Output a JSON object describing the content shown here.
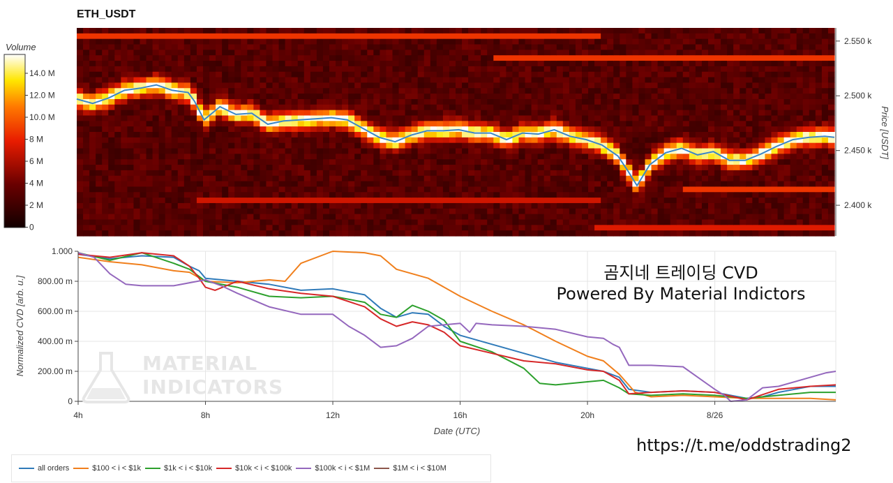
{
  "title": "ETH_USDT",
  "heatmap": {
    "colorbar_title": "Volume",
    "colorbar_ticks": [
      "14.0 M",
      "12.0 M",
      "10.0 M",
      "8 M",
      "6 M",
      "4 M",
      "2 M",
      "0"
    ],
    "price_axis_label": "Price [USDT]",
    "price_ticks": [
      "2.550 k",
      "2.500 k",
      "2.450 k",
      "2.400 k"
    ],
    "price_tick_values": [
      2550,
      2500,
      2450,
      2400
    ],
    "price_range": [
      2372,
      2562
    ],
    "colors": {
      "low": "#120000",
      "mid": "#e81c00",
      "high": "#ffffff"
    }
  },
  "chart_data": {
    "type": "line",
    "xlabel": "Date (UTC)",
    "ylabel": "Normalized CVD [arb. u.]",
    "x_ticks": [
      "4h",
      "8h",
      "12h",
      "16h",
      "20h",
      "8/26"
    ],
    "x_tick_values": [
      4,
      8,
      12,
      16,
      20,
      24
    ],
    "xlim": [
      4,
      27.8
    ],
    "y_ticks": [
      "1.000",
      "800.00 m",
      "600.00 m",
      "400.00 m",
      "200.00 m",
      "0"
    ],
    "y_tick_values": [
      1.0,
      0.8,
      0.6,
      0.4,
      0.2,
      0
    ],
    "ylim": [
      0,
      1.0
    ],
    "grid": true,
    "price_line": {
      "x": [
        4.0,
        4.5,
        5.0,
        5.5,
        6.0,
        6.5,
        7.0,
        7.5,
        7.7,
        8.0,
        8.5,
        9.0,
        9.5,
        10.0,
        10.5,
        11.0,
        11.5,
        12.0,
        12.5,
        13.0,
        13.5,
        14.0,
        14.5,
        15.0,
        15.5,
        16.0,
        16.5,
        17.0,
        17.5,
        18.0,
        18.5,
        19.0,
        19.5,
        20.0,
        20.5,
        21.0,
        21.3,
        21.6,
        22.0,
        22.5,
        23.0,
        23.5,
        24.0,
        24.5,
        25.0,
        25.5,
        26.0,
        26.5,
        27.0,
        27.5,
        27.8
      ],
      "y": [
        2497,
        2493,
        2498,
        2505,
        2507,
        2510,
        2505,
        2503,
        2495,
        2478,
        2490,
        2483,
        2484,
        2474,
        2477,
        2478,
        2479,
        2480,
        2478,
        2470,
        2462,
        2458,
        2464,
        2468,
        2468,
        2469,
        2466,
        2466,
        2460,
        2466,
        2465,
        2469,
        2463,
        2460,
        2455,
        2445,
        2432,
        2418,
        2437,
        2448,
        2452,
        2446,
        2449,
        2441,
        2441,
        2447,
        2454,
        2460,
        2462,
        2463,
        2462
      ]
    },
    "series": [
      {
        "name": "all orders",
        "color": "#2f7ab9",
        "x": [
          4,
          5,
          6,
          7,
          7.5,
          7.8,
          8.0,
          9,
          10,
          11,
          12,
          13,
          13.5,
          14,
          14.5,
          15,
          15.5,
          16,
          17,
          18,
          19,
          20,
          20.5,
          21,
          21.3,
          22,
          23,
          24,
          25,
          25.5,
          26,
          26.5,
          27,
          27.8
        ],
        "y": [
          0.98,
          0.95,
          0.97,
          0.96,
          0.9,
          0.87,
          0.82,
          0.8,
          0.78,
          0.74,
          0.75,
          0.71,
          0.62,
          0.56,
          0.59,
          0.58,
          0.5,
          0.44,
          0.38,
          0.32,
          0.26,
          0.22,
          0.2,
          0.16,
          0.08,
          0.06,
          0.07,
          0.06,
          0.02,
          0.03,
          0.06,
          0.08,
          0.1,
          0.1
        ]
      },
      {
        "name": "$100 < i < $1k",
        "color": "#f07f1c",
        "x": [
          4,
          5,
          6,
          7,
          7.5,
          8.0,
          9,
          10,
          10.5,
          11,
          12,
          13,
          13.5,
          14,
          15,
          16,
          17,
          18,
          19,
          20,
          20.5,
          21,
          21.5,
          22,
          23,
          24,
          25,
          26,
          27,
          27.8
        ],
        "y": [
          0.96,
          0.93,
          0.91,
          0.87,
          0.86,
          0.8,
          0.79,
          0.81,
          0.8,
          0.92,
          1.0,
          0.99,
          0.97,
          0.88,
          0.82,
          0.7,
          0.6,
          0.51,
          0.4,
          0.3,
          0.27,
          0.18,
          0.06,
          0.03,
          0.04,
          0.03,
          0.02,
          0.02,
          0.02,
          0.01
        ]
      },
      {
        "name": "$1k < i < $10k",
        "color": "#2ca02c",
        "x": [
          4,
          5,
          6,
          7,
          7.5,
          8.0,
          9,
          10,
          11,
          12,
          13,
          13.5,
          14,
          14.5,
          15,
          15.5,
          16,
          17,
          18,
          18.5,
          19,
          20,
          20.5,
          21,
          21.3,
          22,
          23,
          24,
          25,
          26,
          27,
          27.8
        ],
        "y": [
          0.99,
          0.94,
          0.99,
          0.92,
          0.88,
          0.8,
          0.76,
          0.7,
          0.69,
          0.7,
          0.66,
          0.58,
          0.56,
          0.64,
          0.6,
          0.54,
          0.4,
          0.33,
          0.22,
          0.12,
          0.11,
          0.13,
          0.14,
          0.09,
          0.05,
          0.04,
          0.05,
          0.04,
          0.02,
          0.04,
          0.06,
          0.06
        ]
      },
      {
        "name": "$10k < i < $100k",
        "color": "#d62728",
        "x": [
          4,
          5,
          6,
          7,
          7.5,
          7.8,
          8.0,
          8.3,
          9,
          10,
          11,
          12,
          13,
          13.5,
          14,
          14.5,
          15,
          15.5,
          16,
          17,
          18,
          19,
          20,
          20.5,
          21,
          21.3,
          22,
          23,
          24,
          25,
          26,
          27,
          27.8
        ],
        "y": [
          0.98,
          0.96,
          0.99,
          0.97,
          0.9,
          0.82,
          0.76,
          0.74,
          0.8,
          0.75,
          0.72,
          0.7,
          0.63,
          0.55,
          0.5,
          0.53,
          0.51,
          0.46,
          0.37,
          0.32,
          0.27,
          0.25,
          0.21,
          0.2,
          0.14,
          0.05,
          0.06,
          0.07,
          0.06,
          0.01,
          0.08,
          0.1,
          0.11
        ]
      },
      {
        "name": "$100k < i < $1M",
        "color": "#9467bd",
        "x": [
          4,
          4.5,
          5,
          5.5,
          6,
          7,
          8.0,
          8.5,
          9,
          10,
          11,
          12,
          12.5,
          13,
          13.5,
          14,
          14.5,
          15,
          16,
          16.3,
          16.5,
          17,
          18,
          19,
          20,
          20.5,
          20.8,
          21.0,
          21.3,
          22,
          23,
          24,
          24.3,
          24.5,
          25,
          25.5,
          26,
          27,
          27.5,
          27.8
        ],
        "y": [
          0.99,
          0.96,
          0.85,
          0.78,
          0.77,
          0.77,
          0.81,
          0.77,
          0.72,
          0.63,
          0.58,
          0.58,
          0.5,
          0.44,
          0.36,
          0.37,
          0.42,
          0.5,
          0.52,
          0.46,
          0.52,
          0.51,
          0.5,
          0.48,
          0.43,
          0.42,
          0.38,
          0.36,
          0.24,
          0.24,
          0.23,
          0.08,
          0.04,
          0.0,
          0.01,
          0.09,
          0.1,
          0.16,
          0.19,
          0.2
        ]
      },
      {
        "name": "$1M < i < $10M",
        "color": "#8c564b",
        "x": [],
        "y": []
      }
    ]
  },
  "overlay": {
    "line1": "곰지네 트레이딩 CVD",
    "line2": "Powered By Material Indictors"
  },
  "watermark": {
    "line1": "MATERIAL",
    "line2": "INDICATORS"
  },
  "link": "https://t.me/oddstrading2"
}
